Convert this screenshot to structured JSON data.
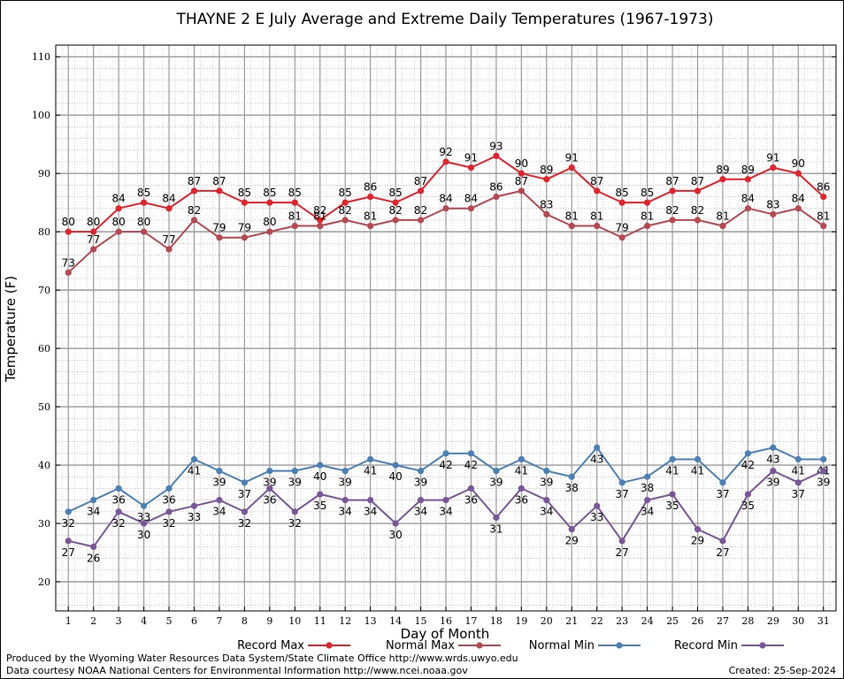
{
  "chart_data": {
    "type": "line",
    "title": "THAYNE 2 E July Average and Extreme Daily Temperatures (1967-1973)",
    "xlabel": "Day of Month",
    "ylabel": "Temperature (F)",
    "ylim": [
      15,
      112
    ],
    "xlim": [
      0.5,
      31.5
    ],
    "yticks": [
      20,
      30,
      40,
      50,
      60,
      70,
      80,
      90,
      100,
      110
    ],
    "x": [
      1,
      2,
      3,
      4,
      5,
      6,
      7,
      8,
      9,
      10,
      11,
      12,
      13,
      14,
      15,
      16,
      17,
      18,
      19,
      20,
      21,
      22,
      23,
      24,
      25,
      26,
      27,
      28,
      29,
      30,
      31
    ],
    "grid": true,
    "legend_position": "bottom",
    "series": [
      {
        "name": "Record Max",
        "color": "#e8202a",
        "values": [
          80,
          80,
          84,
          85,
          84,
          87,
          87,
          85,
          85,
          85,
          82,
          85,
          86,
          85,
          87,
          92,
          91,
          93,
          90,
          89,
          91,
          87,
          85,
          85,
          87,
          87,
          89,
          89,
          91,
          90,
          86
        ],
        "label_side": "above"
      },
      {
        "name": "Normal Max",
        "color": "#b9474f",
        "values": [
          73,
          77,
          80,
          80,
          77,
          82,
          79,
          79,
          80,
          81,
          81,
          82,
          81,
          82,
          82,
          84,
          84,
          86,
          87,
          83,
          81,
          81,
          79,
          81,
          82,
          82,
          81,
          84,
          83,
          84,
          81
        ],
        "label_side": "above"
      },
      {
        "name": "Normal Min",
        "color": "#4a80b8",
        "values": [
          32,
          34,
          36,
          33,
          36,
          41,
          39,
          37,
          39,
          39,
          40,
          39,
          41,
          40,
          39,
          42,
          42,
          39,
          41,
          39,
          38,
          43,
          37,
          38,
          41,
          41,
          37,
          42,
          43,
          41,
          41
        ],
        "label_side": "below"
      },
      {
        "name": "Record Min",
        "color": "#7a559a",
        "values": [
          27,
          26,
          32,
          30,
          32,
          33,
          34,
          32,
          36,
          32,
          35,
          34,
          34,
          30,
          34,
          34,
          36,
          31,
          36,
          34,
          29,
          33,
          27,
          34,
          35,
          29,
          27,
          35,
          39,
          37,
          39
        ],
        "label_side": "below"
      }
    ]
  },
  "footer": {
    "produced_by": "Produced by the Wyoming Water Resources Data System/State Climate Office http://www.wrds.uwyo.edu",
    "courtesy": "Data courtesy NOAA National Centers for Environmental Information http://www.ncei.noaa.gov",
    "created": "Created:  25-Sep-2024"
  }
}
